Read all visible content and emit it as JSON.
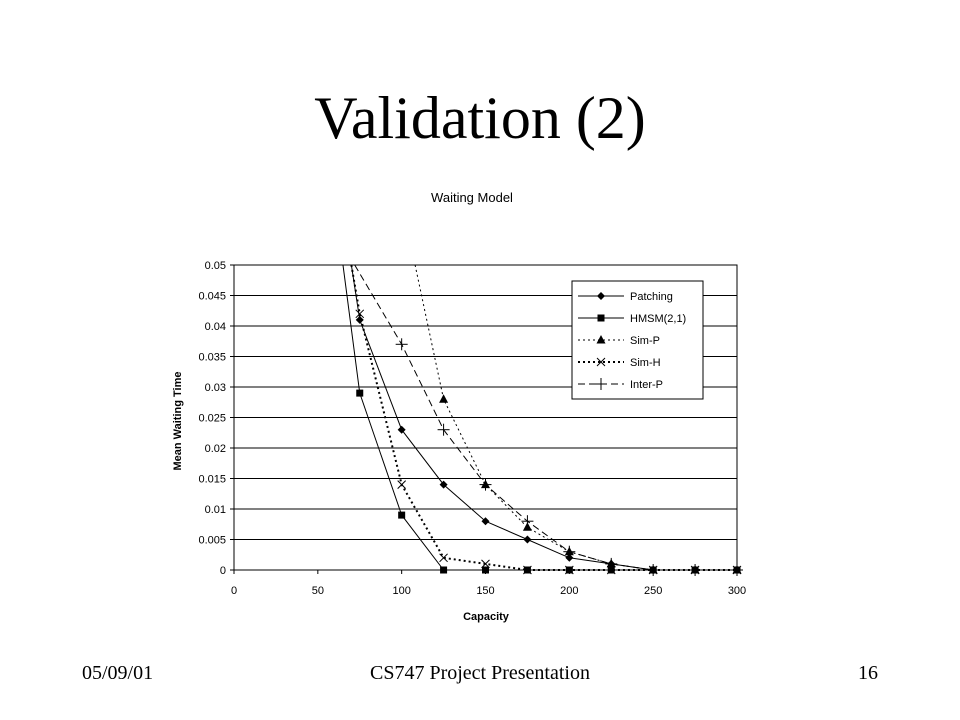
{
  "slide": {
    "title": "Validation (2)",
    "footer_left": "05/09/01",
    "footer_center": "CS747 Project Presentation",
    "footer_right": "16"
  },
  "chart_data": {
    "type": "line",
    "title": "Waiting Model",
    "xlabel": "Capacity",
    "ylabel": "Mean Waiting Time",
    "xlim": [
      0,
      300
    ],
    "ylim": [
      0,
      0.05
    ],
    "x_ticks": [
      "0",
      "50",
      "100",
      "150",
      "200",
      "250",
      "300"
    ],
    "y_ticks": [
      "0",
      "0.005",
      "0.01",
      "0.015",
      "0.02",
      "0.025",
      "0.03",
      "0.035",
      "0.04",
      "0.045",
      "0.05"
    ],
    "grid": "horizontal",
    "legend_position": "top-right",
    "series": [
      {
        "name": "Patching",
        "marker": "diamond",
        "line": "solid",
        "x": [
          75,
          100,
          125,
          150,
          175,
          200,
          225,
          250,
          275,
          300
        ],
        "y": [
          0.041,
          0.023,
          0.014,
          0.008,
          0.005,
          0.002,
          0.001,
          0.0,
          0.0,
          0.0
        ],
        "curve_start": [
          70,
          0.05
        ]
      },
      {
        "name": "HMSM(2,1)",
        "marker": "square",
        "line": "solid",
        "x": [
          75,
          100,
          125,
          150,
          175,
          200,
          225,
          250,
          275,
          300
        ],
        "y": [
          0.029,
          0.009,
          0.0,
          0.0,
          0.0,
          0.0,
          0.0,
          0.0,
          0.0,
          0.0
        ],
        "curve_start": [
          65,
          0.05
        ]
      },
      {
        "name": "Sim-P",
        "marker": "triangle",
        "line": "dotted",
        "x": [
          125,
          150,
          175,
          200,
          225,
          250,
          275,
          300
        ],
        "y": [
          0.028,
          0.014,
          0.007,
          0.003,
          0.001,
          0.0,
          0.0,
          0.0
        ],
        "curve_start": [
          108,
          0.05
        ]
      },
      {
        "name": "Sim-H",
        "marker": "x",
        "line": "dotted-bold",
        "x": [
          75,
          100,
          125,
          150,
          175,
          200,
          225,
          250,
          275,
          300
        ],
        "y": [
          0.042,
          0.014,
          0.002,
          0.001,
          0.0,
          0.0,
          0.0,
          0.0,
          0.0,
          0.0
        ],
        "curve_start": [
          70,
          0.05
        ]
      },
      {
        "name": "Inter-P",
        "marker": "plus",
        "line": "dashed",
        "x": [
          100,
          125,
          150,
          175,
          200,
          225,
          250,
          275,
          300
        ],
        "y": [
          0.037,
          0.023,
          0.014,
          0.008,
          0.003,
          0.001,
          0.0,
          0.0,
          0.0
        ],
        "curve_start": [
          72,
          0.05
        ]
      }
    ]
  }
}
